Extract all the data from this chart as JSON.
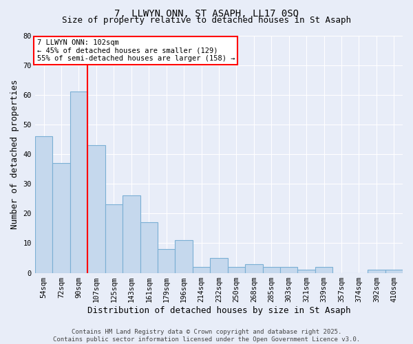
{
  "title": "7, LLWYN ONN, ST ASAPH, LL17 0SQ",
  "subtitle": "Size of property relative to detached houses in St Asaph",
  "xlabel": "Distribution of detached houses by size in St Asaph",
  "ylabel": "Number of detached properties",
  "bar_labels": [
    "54sqm",
    "72sqm",
    "90sqm",
    "107sqm",
    "125sqm",
    "143sqm",
    "161sqm",
    "179sqm",
    "196sqm",
    "214sqm",
    "232sqm",
    "250sqm",
    "268sqm",
    "285sqm",
    "303sqm",
    "321sqm",
    "339sqm",
    "357sqm",
    "374sqm",
    "392sqm",
    "410sqm"
  ],
  "bar_values": [
    46,
    37,
    61,
    43,
    23,
    26,
    17,
    8,
    11,
    2,
    5,
    2,
    3,
    2,
    2,
    1,
    2,
    0,
    0,
    1,
    1
  ],
  "bar_color": "#c5d8ed",
  "bar_edgecolor": "#7aafd4",
  "vline_x": 2.5,
  "vline_color": "red",
  "annotation_text": "7 LLWYN ONN: 102sqm\n← 45% of detached houses are smaller (129)\n55% of semi-detached houses are larger (158) →",
  "annotation_box_color": "white",
  "annotation_box_edgecolor": "red",
  "ylim": [
    0,
    80
  ],
  "yticks": [
    0,
    10,
    20,
    30,
    40,
    50,
    60,
    70,
    80
  ],
  "footer": "Contains HM Land Registry data © Crown copyright and database right 2025.\nContains public sector information licensed under the Open Government Licence v3.0.",
  "bg_color": "#e8edf8",
  "plot_bg_color": "#e8edf8",
  "title_fontsize": 10,
  "subtitle_fontsize": 9,
  "axis_label_fontsize": 9,
  "tick_fontsize": 7.5,
  "footer_fontsize": 6.5,
  "annotation_fontsize": 7.5
}
